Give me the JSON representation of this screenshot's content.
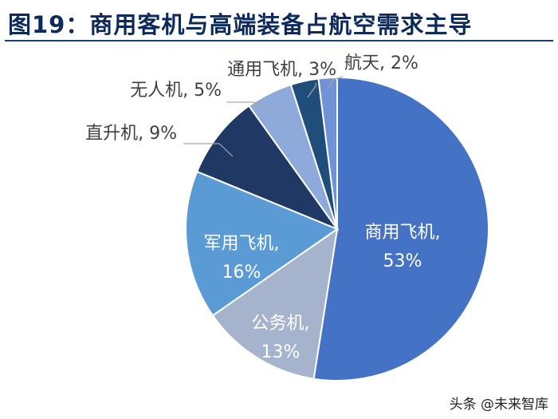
{
  "figure_title": "图19：商用客机与高端装备占航空需求主导",
  "watermark": "头条 @未来智库",
  "colors": {
    "title": "#0d2a5c",
    "rule": "#1f3e75"
  },
  "chart_data": {
    "type": "pie",
    "title": "",
    "slices": [
      {
        "label": "商用飞机",
        "value_label": "53%",
        "value": 53,
        "color": "#4472c4"
      },
      {
        "label": "公务机",
        "value_label": "13%",
        "value": 13,
        "color": "#a5b4cc"
      },
      {
        "label": "军用飞机",
        "value_label": "16%",
        "value": 16,
        "color": "#5b9bd5"
      },
      {
        "label": "直升机",
        "value_label": "9%",
        "value": 9,
        "color": "#1f3864"
      },
      {
        "label": "无人机",
        "value_label": "5%",
        "value": 5,
        "color": "#8eaadb"
      },
      {
        "label": "通用飞机",
        "value_label": "3%",
        "value": 3,
        "color": "#1e4e79"
      },
      {
        "label": "航天",
        "value_label": "2%",
        "value": 2,
        "color": "#6f93d6"
      }
    ]
  }
}
